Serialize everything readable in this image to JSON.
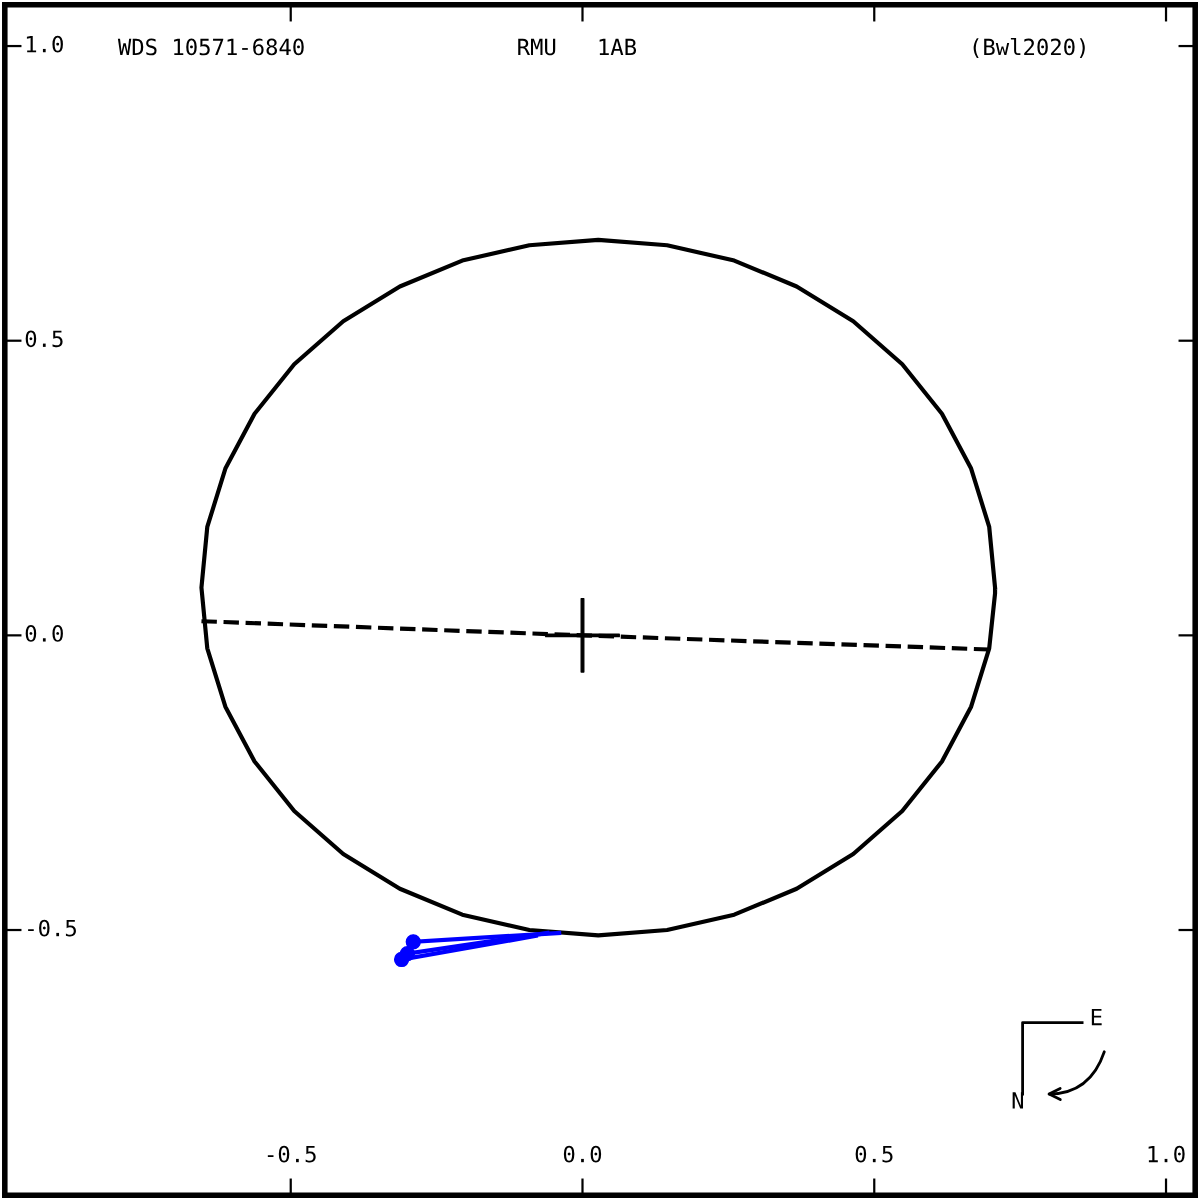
{
  "chart_data": {
    "type": "line",
    "xlim": [
      -0.99,
      1.05
    ],
    "ylim": [
      -0.95,
      1.07
    ],
    "xticks": [
      -0.5,
      {
        "value": 0.0,
        "label": "0.0"
      },
      0.5,
      {
        "value": 1.0,
        "label": "1.0"
      }
    ],
    "yticks": [
      -0.5,
      {
        "value": 0.0,
        "label": "0.0"
      },
      0.5,
      {
        "value": 1.0,
        "label": "1.0"
      }
    ],
    "grid": false,
    "legend": false,
    "annotations": [
      "WDS 10571-6840",
      "RMU   1AB",
      "(Bwl2020)",
      "E",
      "N"
    ],
    "series": [
      {
        "color": "#000000",
        "line_style": "solid",
        "marker": "none",
        "x": [
          0.707,
          0.697,
          0.666,
          0.616,
          0.548,
          0.464,
          0.367,
          0.26,
          0.145,
          0.027,
          -0.091,
          -0.206,
          -0.313,
          -0.41,
          -0.494,
          -0.562,
          -0.612,
          -0.643,
          -0.653,
          -0.643,
          -0.612,
          -0.562,
          -0.494,
          -0.41,
          -0.313,
          -0.206,
          -0.091,
          0.027,
          0.145,
          0.26,
          0.367,
          0.464,
          0.548,
          0.616,
          0.666,
          0.697,
          0.707,
          0.707
        ],
        "values": [
          0.081,
          0.184,
          0.283,
          0.376,
          0.46,
          0.533,
          0.592,
          0.636,
          0.662,
          0.671,
          0.662,
          0.636,
          0.592,
          0.533,
          0.46,
          0.376,
          0.283,
          0.184,
          0.081,
          -0.022,
          -0.121,
          -0.214,
          -0.298,
          -0.371,
          -0.43,
          -0.474,
          -0.5,
          -0.509,
          -0.5,
          -0.474,
          -0.43,
          -0.371,
          -0.298,
          -0.214,
          -0.121,
          -0.022,
          0.071,
          0.077
        ]
      },
      {
        "color": "#000000",
        "line_style": "dashed",
        "marker": "none",
        "x": [
          -0.653,
          0.0,
          0.697
        ],
        "values": [
          0.024,
          0.0,
          -0.024
        ]
      },
      {
        "type": "scatter",
        "color": "#000000",
        "marker": "cross",
        "x": [
          0.0
        ],
        "values": [
          0.0
        ]
      },
      {
        "color": "#0000ff",
        "line_style": "solid",
        "marker": "none",
        "x": [
          -0.3,
          -0.06
        ],
        "values": [
          -0.54,
          -0.505
        ]
      },
      {
        "color": "#0000ff",
        "line_style": "solid",
        "marker": "none",
        "x": [
          -0.29,
          -0.04
        ],
        "values": [
          -0.52,
          -0.505
        ]
      },
      {
        "color": "#0000ff",
        "line_style": "solid",
        "marker": "none",
        "x": [
          -0.31,
          -0.08
        ],
        "values": [
          -0.55,
          -0.51
        ]
      },
      {
        "type": "scatter",
        "color": "#0000ff",
        "marker": "circle",
        "x": [
          -0.3,
          -0.29,
          -0.31
        ],
        "values": [
          -0.54,
          -0.52,
          -0.55
        ]
      }
    ]
  }
}
